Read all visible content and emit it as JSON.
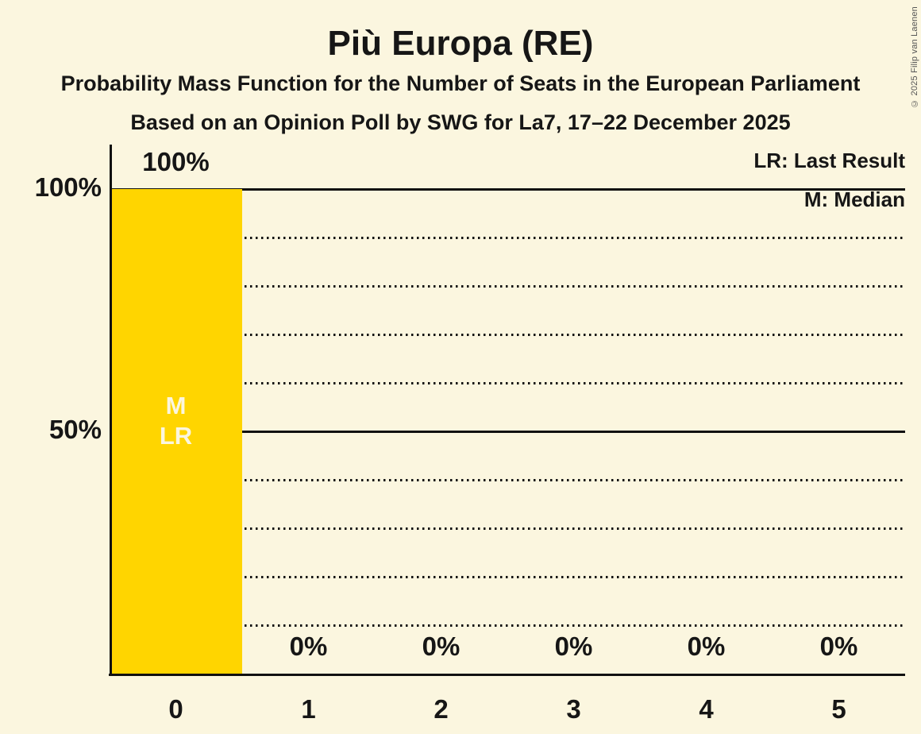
{
  "copyright": "© 2025 Filip van Laenen",
  "colors": {
    "background": "#FBF6DF",
    "bar": "#FFD500",
    "text": "#161616",
    "gridline": "#111111",
    "annotation_text": "#FBF6DF",
    "copyright_text": "#555555"
  },
  "chart_data": {
    "type": "bar",
    "title": "Più Europa (RE)",
    "subtitle": "Probability Mass Function for the Number of Seats in the European Parliament",
    "source_line": "Based on an Opinion Poll by SWG for La7, 17–22 December 2025",
    "categories": [
      "0",
      "1",
      "2",
      "3",
      "4",
      "5"
    ],
    "values": [
      100,
      0,
      0,
      0,
      0,
      0
    ],
    "value_labels": [
      "100%",
      "0%",
      "0%",
      "0%",
      "0%",
      "0%"
    ],
    "ylim": [
      0,
      100
    ],
    "y_major_ticks": [
      {
        "value": 100,
        "label": "100%"
      },
      {
        "value": 50,
        "label": "50%"
      }
    ],
    "y_minor_ticks": [
      90,
      80,
      70,
      60,
      40,
      30,
      20,
      10
    ],
    "grid": "solid major lines, dotted minor lines, no vertical grid",
    "legend_position": "top-right",
    "legend": [
      {
        "key": "LR",
        "label": "LR: Last Result"
      },
      {
        "key": "M",
        "label": "M: Median"
      }
    ],
    "annotations": [
      {
        "category_index": 0,
        "lines": [
          "M",
          "LR"
        ],
        "meaning": "Median and Last Result at 0 seats"
      }
    ]
  }
}
